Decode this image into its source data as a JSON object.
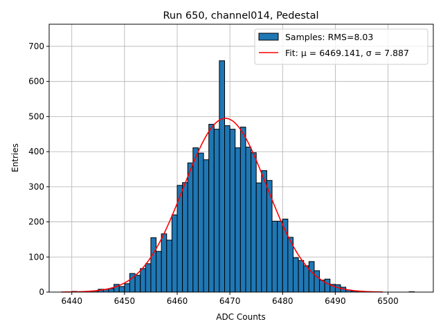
{
  "chart_data": {
    "type": "bar",
    "title": "Run 650, channel014, Pedestal",
    "xlabel": "ADC Counts",
    "ylabel": "Entries",
    "xlim": [
      6435.7,
      6508.6
    ],
    "ylim": [
      0,
      763
    ],
    "xticks": [
      6440,
      6450,
      6460,
      6470,
      6480,
      6490,
      6500
    ],
    "yticks": [
      0,
      100,
      200,
      300,
      400,
      500,
      600,
      700
    ],
    "grid": true,
    "legend_position": "top-right",
    "bin_width": 1,
    "bin_start": 6439,
    "values": [
      0,
      2,
      1,
      2,
      2,
      3,
      8,
      8,
      10,
      22,
      16,
      24,
      53,
      48,
      67,
      81,
      155,
      116,
      166,
      148,
      220,
      304,
      312,
      368,
      411,
      396,
      377,
      478,
      464,
      659,
      474,
      464,
      411,
      470,
      413,
      397,
      311,
      346,
      318,
      202,
      202,
      208,
      156,
      98,
      90,
      75,
      87,
      61,
      34,
      37,
      22,
      21,
      14,
      6,
      3,
      1,
      1,
      0,
      0,
      0,
      0,
      0,
      0,
      0,
      0,
      1
    ],
    "fit": {
      "mu": 6469.141,
      "sigma": 7.887,
      "amplitude": 495,
      "x_range": [
        6438,
        6499
      ]
    },
    "series": [
      {
        "name": "Samples: RMS=8.03",
        "kind": "histogram",
        "color": "#1f77b4"
      },
      {
        "name": "Fit: μ = 6469.141, σ = 7.887",
        "kind": "line",
        "color": "#ff0000"
      }
    ]
  }
}
